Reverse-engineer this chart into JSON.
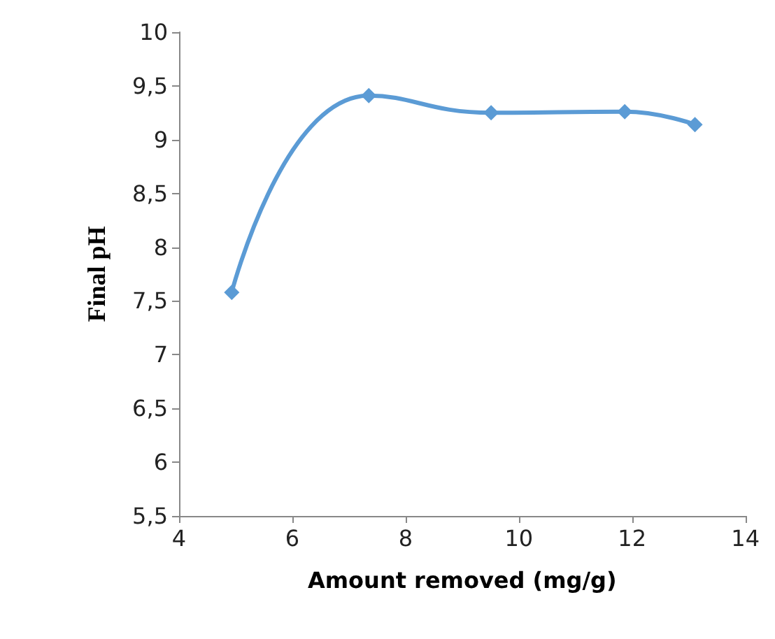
{
  "chart_data": {
    "type": "line",
    "xlabel": "Amount removed (mg/g)",
    "ylabel": "Final pH",
    "x": [
      4.93,
      7.35,
      9.51,
      11.87,
      13.11
    ],
    "series": [
      {
        "color": "#5b9bd5",
        "values": [
          7.58,
          9.41,
          9.25,
          9.26,
          9.14
        ]
      }
    ],
    "xlim": [
      4,
      14
    ],
    "xticks": [
      4,
      6,
      8,
      10,
      12,
      14
    ],
    "ylim": [
      5.5,
      10
    ],
    "yticks": [
      {
        "value": 5.5,
        "label": "5,5"
      },
      6,
      {
        "value": 6.5,
        "label": "6,5"
      },
      7,
      {
        "value": 7.5,
        "label": "7,5"
      },
      8,
      {
        "value": 8.5,
        "label": "8,5"
      },
      9,
      {
        "value": 9.5,
        "label": "9,5"
      },
      10
    ],
    "grid": false,
    "marker": "diamond",
    "line_style": "solid"
  }
}
